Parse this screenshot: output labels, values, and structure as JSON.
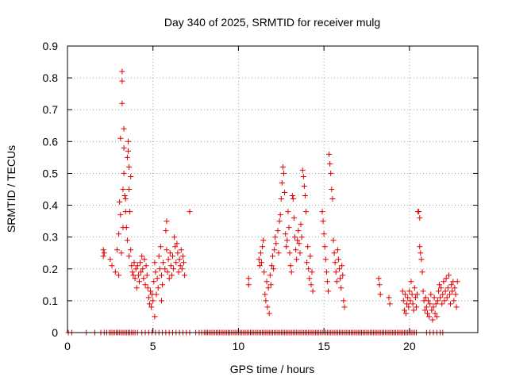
{
  "chart_data": {
    "type": "scatter",
    "title": "Day 340 of 2025, SRMTID for receiver mulg",
    "xlabel": "GPS time / hours",
    "ylabel": "SRMTID / TECUs",
    "xlim": [
      0,
      24
    ],
    "ylim": [
      0,
      0.9
    ],
    "xticks": [
      0,
      5,
      10,
      15,
      20
    ],
    "yticks": [
      0,
      0.1,
      0.2,
      0.3,
      0.4,
      0.5,
      0.6,
      0.7,
      0.8,
      0.9
    ],
    "xtick_labels": [
      "0",
      "5",
      "10",
      "15",
      "20"
    ],
    "ytick_labels": [
      "0",
      "0.1",
      "0.2",
      "0.3",
      "0.4",
      "0.5",
      "0.6",
      "0.7",
      "0.8",
      "0.9"
    ],
    "grid": true,
    "marker": "+",
    "color": "#e00000",
    "series": [
      {
        "name": "SRMTID",
        "points": [
          [
            2.1,
            0.26
          ],
          [
            2.1,
            0.24
          ],
          [
            2.15,
            0.25
          ],
          [
            2.5,
            0.23
          ],
          [
            2.6,
            0.21
          ],
          [
            2.8,
            0.19
          ],
          [
            2.9,
            0.26
          ],
          [
            3.0,
            0.18
          ],
          [
            3.0,
            0.31
          ],
          [
            3.05,
            0.41
          ],
          [
            3.1,
            0.37
          ],
          [
            3.1,
            0.61
          ],
          [
            3.15,
            0.25
          ],
          [
            3.2,
            0.82
          ],
          [
            3.2,
            0.79
          ],
          [
            3.2,
            0.72
          ],
          [
            3.25,
            0.45
          ],
          [
            3.25,
            0.33
          ],
          [
            3.3,
            0.64
          ],
          [
            3.3,
            0.58
          ],
          [
            3.3,
            0.5
          ],
          [
            3.35,
            0.43
          ],
          [
            3.4,
            0.42
          ],
          [
            3.4,
            0.38
          ],
          [
            3.45,
            0.33
          ],
          [
            3.5,
            0.29
          ],
          [
            3.5,
            0.55
          ],
          [
            3.55,
            0.6
          ],
          [
            3.55,
            0.57
          ],
          [
            3.6,
            0.52
          ],
          [
            3.6,
            0.45
          ],
          [
            3.6,
            0.24
          ],
          [
            3.65,
            0.38
          ],
          [
            3.7,
            0.49
          ],
          [
            3.7,
            0.26
          ],
          [
            3.75,
            0.21
          ],
          [
            3.8,
            0.19
          ],
          [
            3.85,
            0.18
          ],
          [
            3.9,
            0.22
          ],
          [
            3.95,
            0.17
          ],
          [
            4.0,
            0.2
          ],
          [
            4.05,
            0.14
          ],
          [
            4.1,
            0.21
          ],
          [
            4.15,
            0.18
          ],
          [
            4.2,
            0.16
          ],
          [
            4.25,
            0.22
          ],
          [
            4.3,
            0.19
          ],
          [
            4.35,
            0.24
          ],
          [
            4.4,
            0.2
          ],
          [
            4.45,
            0.17
          ],
          [
            4.5,
            0.23
          ],
          [
            4.55,
            0.15
          ],
          [
            4.6,
            0.21
          ],
          [
            4.65,
            0.18
          ],
          [
            4.7,
            0.14
          ],
          [
            4.75,
            0.11
          ],
          [
            4.8,
            0.09
          ],
          [
            4.85,
            0.13
          ],
          [
            4.9,
            0.08
          ],
          [
            4.95,
            0.12
          ],
          [
            5.0,
            0.1
          ],
          [
            5.05,
            0.16
          ],
          [
            5.1,
            0.05
          ],
          [
            5.1,
            0.22
          ],
          [
            5.15,
            0.19
          ],
          [
            5.2,
            0.12
          ],
          [
            5.25,
            0.17
          ],
          [
            5.3,
            0.14
          ],
          [
            5.35,
            0.24
          ],
          [
            5.4,
            0.2
          ],
          [
            5.45,
            0.27
          ],
          [
            5.5,
            0.18
          ],
          [
            5.5,
            0.1
          ],
          [
            5.55,
            0.15
          ],
          [
            5.6,
            0.22
          ],
          [
            5.7,
            0.2
          ],
          [
            5.75,
            0.32
          ],
          [
            5.8,
            0.35
          ],
          [
            5.8,
            0.26
          ],
          [
            5.85,
            0.19
          ],
          [
            5.9,
            0.23
          ],
          [
            5.95,
            0.17
          ],
          [
            6.0,
            0.25
          ],
          [
            6.05,
            0.21
          ],
          [
            6.1,
            0.18
          ],
          [
            6.15,
            0.24
          ],
          [
            6.2,
            0.2
          ],
          [
            6.25,
            0.3
          ],
          [
            6.3,
            0.27
          ],
          [
            6.35,
            0.22
          ],
          [
            6.4,
            0.28
          ],
          [
            6.45,
            0.25
          ],
          [
            6.5,
            0.19
          ],
          [
            6.55,
            0.23
          ],
          [
            6.6,
            0.21
          ],
          [
            6.65,
            0.26
          ],
          [
            6.7,
            0.2
          ],
          [
            6.75,
            0.24
          ],
          [
            6.8,
            0.22
          ],
          [
            6.85,
            0.18
          ],
          [
            7.15,
            0.38
          ],
          [
            10.6,
            0.17
          ],
          [
            10.6,
            0.15
          ],
          [
            11.2,
            0.23
          ],
          [
            11.25,
            0.21
          ],
          [
            11.3,
            0.25
          ],
          [
            11.35,
            0.22
          ],
          [
            11.4,
            0.27
          ],
          [
            11.45,
            0.29
          ],
          [
            11.5,
            0.19
          ],
          [
            11.55,
            0.12
          ],
          [
            11.6,
            0.1
          ],
          [
            11.65,
            0.16
          ],
          [
            11.7,
            0.08
          ],
          [
            11.75,
            0.14
          ],
          [
            11.8,
            0.06
          ],
          [
            11.85,
            0.18
          ],
          [
            11.9,
            0.15
          ],
          [
            11.95,
            0.21
          ],
          [
            12.0,
            0.24
          ],
          [
            12.05,
            0.2
          ],
          [
            12.1,
            0.26
          ],
          [
            12.15,
            0.3
          ],
          [
            12.2,
            0.28
          ],
          [
            12.3,
            0.32
          ],
          [
            12.35,
            0.25
          ],
          [
            12.4,
            0.35
          ],
          [
            12.45,
            0.37
          ],
          [
            12.5,
            0.42
          ],
          [
            12.55,
            0.47
          ],
          [
            12.6,
            0.52
          ],
          [
            12.65,
            0.5
          ],
          [
            12.7,
            0.44
          ],
          [
            12.75,
            0.31
          ],
          [
            12.8,
            0.27
          ],
          [
            12.85,
            0.29
          ],
          [
            12.9,
            0.38
          ],
          [
            12.95,
            0.33
          ],
          [
            13.0,
            0.25
          ],
          [
            13.05,
            0.21
          ],
          [
            13.1,
            0.19
          ],
          [
            13.15,
            0.43
          ],
          [
            13.2,
            0.42
          ],
          [
            13.25,
            0.36
          ],
          [
            13.3,
            0.3
          ],
          [
            13.35,
            0.26
          ],
          [
            13.4,
            0.23
          ],
          [
            13.45,
            0.29
          ],
          [
            13.5,
            0.32
          ],
          [
            13.55,
            0.28
          ],
          [
            13.6,
            0.25
          ],
          [
            13.65,
            0.34
          ],
          [
            13.7,
            0.3
          ],
          [
            13.75,
            0.51
          ],
          [
            13.8,
            0.49
          ],
          [
            13.85,
            0.46
          ],
          [
            13.9,
            0.43
          ],
          [
            13.95,
            0.38
          ],
          [
            14.0,
            0.22
          ],
          [
            14.05,
            0.27
          ],
          [
            14.1,
            0.2
          ],
          [
            14.15,
            0.17
          ],
          [
            14.2,
            0.24
          ],
          [
            14.25,
            0.15
          ],
          [
            14.3,
            0.19
          ],
          [
            14.35,
            0.13
          ],
          [
            14.9,
            0.38
          ],
          [
            14.95,
            0.35
          ],
          [
            15.0,
            0.31
          ],
          [
            15.05,
            0.27
          ],
          [
            15.1,
            0.23
          ],
          [
            15.15,
            0.19
          ],
          [
            15.2,
            0.16
          ],
          [
            15.25,
            0.13
          ],
          [
            15.3,
            0.56
          ],
          [
            15.35,
            0.53
          ],
          [
            15.4,
            0.5
          ],
          [
            15.45,
            0.45
          ],
          [
            15.5,
            0.42
          ],
          [
            15.55,
            0.29
          ],
          [
            15.6,
            0.25
          ],
          [
            15.65,
            0.22
          ],
          [
            15.7,
            0.19
          ],
          [
            15.75,
            0.16
          ],
          [
            15.8,
            0.26
          ],
          [
            15.85,
            0.23
          ],
          [
            15.9,
            0.2
          ],
          [
            15.95,
            0.17
          ],
          [
            16.0,
            0.14
          ],
          [
            16.05,
            0.21
          ],
          [
            16.1,
            0.18
          ],
          [
            16.15,
            0.1
          ],
          [
            16.2,
            0.08
          ],
          [
            18.2,
            0.17
          ],
          [
            18.25,
            0.15
          ],
          [
            18.3,
            0.12
          ],
          [
            18.8,
            0.11
          ],
          [
            18.85,
            0.09
          ],
          [
            19.6,
            0.13
          ],
          [
            19.65,
            0.1
          ],
          [
            19.7,
            0.07
          ],
          [
            19.75,
            0.12
          ],
          [
            19.8,
            0.06
          ],
          [
            19.85,
            0.09
          ],
          [
            19.9,
            0.11
          ],
          [
            19.95,
            0.08
          ],
          [
            20.0,
            0.13
          ],
          [
            20.05,
            0.1
          ],
          [
            20.1,
            0.16
          ],
          [
            20.15,
            0.12
          ],
          [
            20.2,
            0.09
          ],
          [
            20.25,
            0.07
          ],
          [
            20.3,
            0.14
          ],
          [
            20.35,
            0.11
          ],
          [
            20.4,
            0.08
          ],
          [
            20.45,
            0.12
          ],
          [
            20.5,
            0.38
          ],
          [
            20.55,
            0.38
          ],
          [
            20.6,
            0.36
          ],
          [
            20.6,
            0.27
          ],
          [
            20.65,
            0.25
          ],
          [
            20.7,
            0.23
          ],
          [
            20.75,
            0.19
          ],
          [
            20.8,
            0.13
          ],
          [
            20.85,
            0.1
          ],
          [
            20.9,
            0.07
          ],
          [
            20.95,
            0.11
          ],
          [
            21.0,
            0.08
          ],
          [
            21.05,
            0.06
          ],
          [
            21.1,
            0.1
          ],
          [
            21.15,
            0.05
          ],
          [
            21.2,
            0.09
          ],
          [
            21.25,
            0.12
          ],
          [
            21.3,
            0.07
          ],
          [
            21.35,
            0.04
          ],
          [
            21.4,
            0.08
          ],
          [
            21.45,
            0.11
          ],
          [
            21.5,
            0.06
          ],
          [
            21.55,
            0.09
          ],
          [
            21.6,
            0.05
          ],
          [
            21.65,
            0.1
          ],
          [
            21.7,
            0.13
          ],
          [
            21.75,
            0.15
          ],
          [
            21.8,
            0.11
          ],
          [
            21.85,
            0.14
          ],
          [
            21.9,
            0.09
          ],
          [
            21.95,
            0.12
          ],
          [
            22.0,
            0.16
          ],
          [
            22.05,
            0.1
          ],
          [
            22.1,
            0.13
          ],
          [
            22.15,
            0.17
          ],
          [
            22.2,
            0.11
          ],
          [
            22.25,
            0.14
          ],
          [
            22.3,
            0.18
          ],
          [
            22.35,
            0.12
          ],
          [
            22.4,
            0.09
          ],
          [
            22.45,
            0.15
          ],
          [
            22.5,
            0.13
          ],
          [
            22.55,
            0.16
          ],
          [
            22.6,
            0.1
          ],
          [
            22.65,
            0.14
          ],
          [
            22.7,
            0.12
          ],
          [
            22.75,
            0.08
          ],
          [
            22.8,
            0.16
          ]
        ],
        "zero_hours": [
          0.05,
          0.25,
          1.1,
          1.6,
          1.95,
          2.15,
          2.3,
          2.45,
          2.55,
          2.65,
          2.75,
          2.85,
          2.95,
          3.05,
          3.15,
          3.25,
          3.35,
          3.45,
          3.55,
          3.65,
          3.75,
          3.85,
          3.95,
          4.1,
          4.35,
          4.55,
          4.75,
          4.95,
          5.15,
          5.35,
          5.55,
          5.75,
          5.95,
          6.15,
          6.35,
          6.55,
          6.75,
          6.95,
          7.15,
          7.5,
          7.7,
          7.85,
          8.0,
          8.1,
          8.2,
          8.3,
          8.4,
          8.5,
          8.6,
          8.7,
          8.8,
          8.9,
          9.0,
          9.1,
          9.2,
          9.3,
          9.4,
          9.5,
          9.6,
          9.7,
          9.8,
          9.9,
          10.0,
          10.1,
          10.2,
          10.3,
          10.4,
          10.5,
          10.6,
          10.7,
          10.8,
          10.9,
          11.0,
          11.1,
          11.2,
          11.3,
          11.4,
          11.5,
          11.6,
          11.7,
          11.8,
          11.9,
          12.0,
          12.1,
          12.2,
          12.3,
          12.4,
          12.5,
          12.6,
          12.7,
          12.8,
          12.9,
          13.0,
          13.1,
          13.2,
          13.3,
          13.4,
          13.5,
          13.6,
          13.7,
          13.8,
          13.9,
          14.0,
          14.1,
          14.2,
          14.3,
          14.4,
          14.5,
          14.6,
          14.7,
          14.8,
          14.9,
          15.0,
          15.1,
          15.2,
          15.3,
          15.4,
          15.5,
          15.6,
          15.7,
          15.8,
          15.9,
          16.0,
          16.1,
          16.2,
          16.3,
          16.4,
          16.5,
          16.6,
          16.7,
          16.8,
          16.9,
          17.0,
          17.1,
          17.2,
          17.3,
          17.4,
          17.5,
          17.6,
          17.7,
          17.8,
          17.9,
          18.0,
          18.1,
          18.2,
          18.3,
          18.4,
          18.5,
          18.6,
          18.7,
          18.8,
          18.9,
          19.0,
          19.1,
          19.2,
          19.3,
          19.4,
          19.5,
          19.6,
          19.7,
          19.8,
          19.9,
          20.0,
          20.1,
          20.2,
          20.3,
          20.4,
          21.0,
          21.2,
          21.4,
          21.6,
          21.8,
          21.95
        ]
      }
    ]
  }
}
